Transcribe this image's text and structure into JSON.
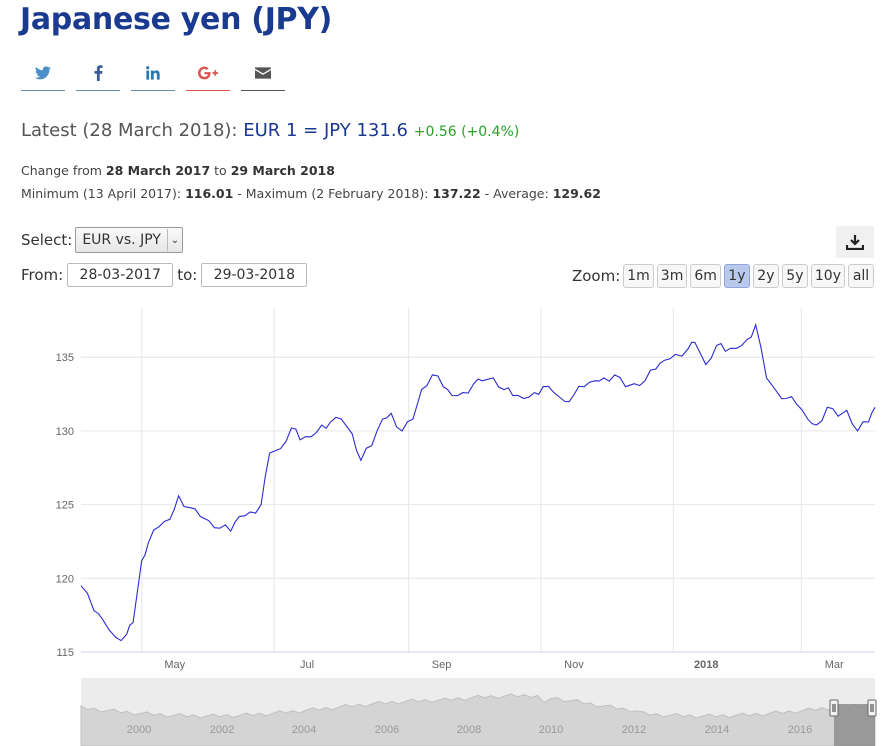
{
  "page": {
    "title": "Japanese yen (JPY)",
    "latest_prefix": "Latest (28 March 2018):",
    "latest_pair": "EUR 1 = JPY 131.6",
    "latest_change": "+0.56 (+0.4%)",
    "change_label": "Change from",
    "change_from": "28 March 2017",
    "change_to_label": "to",
    "change_to": "29 March 2018",
    "min_label": "Minimum (13 April 2017):",
    "min_value": "116.01",
    "max_label": "- Maximum (2 February 2018):",
    "max_value": "137.22",
    "avg_label": "- Average:",
    "avg_value": "129.62"
  },
  "share": [
    {
      "name": "twitter",
      "icon": "twitter-icon",
      "color": "#4a90c8"
    },
    {
      "name": "facebook",
      "icon": "facebook-icon",
      "color": "#3b5b9a"
    },
    {
      "name": "linkedin",
      "icon": "linkedin-icon",
      "color": "#2a7ab0"
    },
    {
      "name": "googleplus",
      "icon": "google-plus-icon",
      "color": "#d9534f"
    },
    {
      "name": "email",
      "icon": "envelope-icon",
      "color": "#555555"
    }
  ],
  "controls": {
    "select_label": "Select:",
    "select_value": "EUR vs. JPY",
    "from_label": "From:",
    "from_value": "28-03-2017",
    "to_label": "to:",
    "to_value": "29-03-2018",
    "zoom_label": "Zoom:",
    "zoom_options": [
      "1m",
      "3m",
      "6m",
      "1y",
      "2y",
      "5y",
      "10y",
      "all"
    ],
    "zoom_active": "1y",
    "download_icon": "download-icon"
  },
  "chart_data": {
    "type": "line",
    "title": "",
    "xlabel": "",
    "ylabel": "",
    "ylim": [
      115,
      138
    ],
    "y_ticks": [
      115,
      120,
      125,
      130,
      135
    ],
    "x_tick_labels": [
      "May",
      "Jul",
      "Sep",
      "Nov",
      "2018",
      "Mar"
    ],
    "grid": true,
    "series": [
      {
        "color": "#2b2bd1",
        "x": [
          "2017-03-28",
          "2017-04-03",
          "2017-04-07",
          "2017-04-13",
          "2017-04-18",
          "2017-04-21",
          "2017-04-25",
          "2017-04-28",
          "2017-05-03",
          "2017-05-08",
          "2017-05-12",
          "2017-05-17",
          "2017-05-22",
          "2017-05-26",
          "2017-05-31",
          "2017-06-05",
          "2017-06-09",
          "2017-06-14",
          "2017-06-19",
          "2017-06-23",
          "2017-06-28",
          "2017-07-03",
          "2017-07-07",
          "2017-07-12",
          "2017-07-17",
          "2017-07-21",
          "2017-07-26",
          "2017-07-31",
          "2017-08-04",
          "2017-08-09",
          "2017-08-14",
          "2017-08-18",
          "2017-08-23",
          "2017-08-28",
          "2017-09-01",
          "2017-09-06",
          "2017-09-11",
          "2017-09-15",
          "2017-09-20",
          "2017-09-25",
          "2017-09-29",
          "2017-10-04",
          "2017-10-09",
          "2017-10-13",
          "2017-10-18",
          "2017-10-23",
          "2017-10-27",
          "2017-11-01",
          "2017-11-06",
          "2017-11-10",
          "2017-11-15",
          "2017-11-20",
          "2017-11-24",
          "2017-11-29",
          "2017-12-04",
          "2017-12-08",
          "2017-12-13",
          "2017-12-18",
          "2017-12-22",
          "2017-12-27",
          "2018-01-02",
          "2018-01-05",
          "2018-01-10",
          "2018-01-15",
          "2018-01-19",
          "2018-01-24",
          "2018-01-29",
          "2018-02-02",
          "2018-02-07",
          "2018-02-12",
          "2018-02-16",
          "2018-02-21",
          "2018-02-26",
          "2018-03-02",
          "2018-03-07",
          "2018-03-12",
          "2018-03-16",
          "2018-03-21",
          "2018-03-26",
          "2018-03-29"
        ],
        "y": [
          119.5,
          117.8,
          117.2,
          116.0,
          116.2,
          117.0,
          121.2,
          122.4,
          123.5,
          124.0,
          125.6,
          124.8,
          124.2,
          123.9,
          123.4,
          123.2,
          124.2,
          124.5,
          125.0,
          128.5,
          128.8,
          130.2,
          129.4,
          129.6,
          130.4,
          130.6,
          130.8,
          129.8,
          128.0,
          129.0,
          130.8,
          131.2,
          130.0,
          130.8,
          132.8,
          133.8,
          133.0,
          132.4,
          132.6,
          133.2,
          133.4,
          133.6,
          132.8,
          132.4,
          132.2,
          132.6,
          133.0,
          132.6,
          132.0,
          132.4,
          133.0,
          133.4,
          133.6,
          133.8,
          133.0,
          133.2,
          133.4,
          134.2,
          134.8,
          135.2,
          135.6,
          136.0,
          134.5,
          135.8,
          135.4,
          135.6,
          136.2,
          137.2,
          133.6,
          132.6,
          132.2,
          131.8,
          130.8,
          130.4,
          131.6,
          131.0,
          131.4,
          130.0,
          130.6,
          131.6
        ]
      }
    ],
    "navigator_x_labels": [
      "2000",
      "2002",
      "2004",
      "2006",
      "2008",
      "2010",
      "2012",
      "2014",
      "2016"
    ]
  }
}
